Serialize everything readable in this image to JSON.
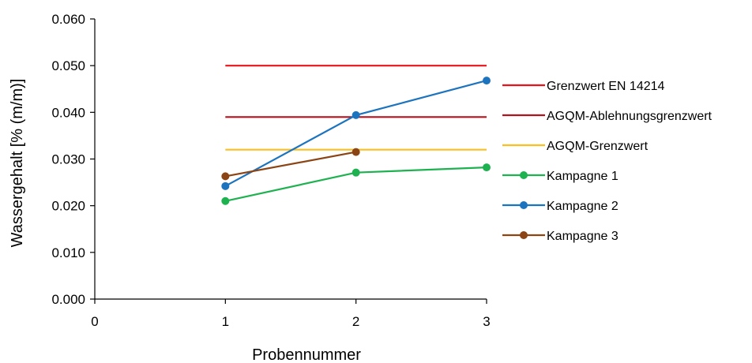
{
  "chart_data": {
    "type": "line",
    "title": "",
    "xlabel": "Probennummer",
    "ylabel": "Wassergehalt [% (m/m)]",
    "xlim": [
      0,
      3
    ],
    "ylim": [
      0,
      0.06
    ],
    "x_ticks": [
      "0",
      "1",
      "2",
      "3"
    ],
    "y_ticks": [
      "0.000",
      "0.010",
      "0.020",
      "0.030",
      "0.040",
      "0.050",
      "0.060"
    ],
    "grid": false,
    "legend_position": "right",
    "series": [
      {
        "name": "Grenzwert EN 14214",
        "color": "#e8131b",
        "marker": "none",
        "x": [
          1,
          3
        ],
        "values": [
          0.05,
          0.05
        ]
      },
      {
        "name": "AGQM-Ablehnungsgrenzwert",
        "color": "#b0141e",
        "marker": "none",
        "x": [
          1,
          3
        ],
        "values": [
          0.039,
          0.039
        ]
      },
      {
        "name": "AGQM-Grenzwert",
        "color": "#fbbf21",
        "marker": "none",
        "x": [
          1,
          3
        ],
        "values": [
          0.032,
          0.032
        ]
      },
      {
        "name": "Kampagne 1",
        "color": "#1db24f",
        "marker": "circle",
        "x": [
          1,
          2,
          3
        ],
        "values": [
          0.021,
          0.0271,
          0.0282
        ]
      },
      {
        "name": "Kampagne 2",
        "color": "#1c73be",
        "marker": "circle",
        "x": [
          1,
          2,
          3
        ],
        "values": [
          0.0242,
          0.0394,
          0.0468
        ]
      },
      {
        "name": "Kampagne 3",
        "color": "#8b4413",
        "marker": "circle",
        "x": [
          1,
          2
        ],
        "values": [
          0.0263,
          0.0315
        ]
      }
    ]
  }
}
